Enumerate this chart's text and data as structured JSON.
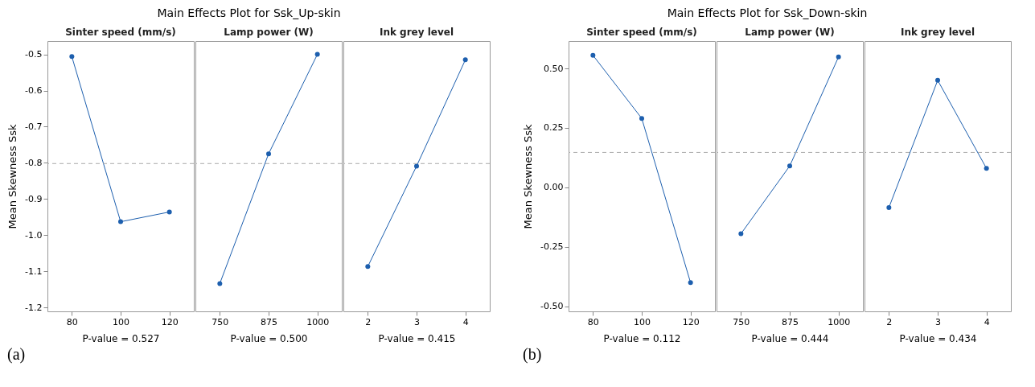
{
  "chart_data": [
    {
      "type": "line",
      "title": "Main Effects Plot for Ssk_Up-skin",
      "subtitle": "Sinter speed (mm/s)",
      "xlabel": "P-value = 0.527",
      "ylabel": "Mean Skewness Ssk",
      "annotations": [
        "(a)"
      ],
      "categories": [
        "80",
        "100",
        "120"
      ],
      "values": [
        -0.506,
        -0.963,
        -0.936
      ],
      "color": "#1d5fae",
      "marker": "circle",
      "ylim": [
        -1.211,
        -0.463
      ],
      "yticks": [
        -1.2,
        -1.1,
        {
          "value": -1.0,
          "label": "-1.0"
        },
        -0.9,
        -0.8,
        -0.7,
        -0.6,
        -0.5
      ],
      "ref_lines": [
        {
          "axis": "y",
          "value": -0.802,
          "color": "#aaaaaa",
          "line_style": "dashed"
        }
      ],
      "grid": false
    },
    {
      "type": "line",
      "subtitle": "Lamp power (W)",
      "xlabel": "P-value = 0.500",
      "categories": [
        "750",
        "875",
        "1000"
      ],
      "values": [
        -1.134,
        -0.775,
        -0.5
      ],
      "color": "#1d5fae",
      "marker": "circle",
      "ylim": [
        -1.211,
        -0.463
      ],
      "tick_labels": "x",
      "ref_lines": [
        {
          "axis": "y",
          "value": -0.802,
          "color": "#aaaaaa",
          "line_style": "dashed"
        }
      ],
      "grid": false
    },
    {
      "type": "line",
      "subtitle": "Ink grey level",
      "xlabel": "P-value = 0.415",
      "categories": [
        "2",
        "3",
        "4"
      ],
      "values": [
        -1.087,
        -0.809,
        -0.515
      ],
      "color": "#1d5fae",
      "marker": "circle",
      "ylim": [
        -1.211,
        -0.463
      ],
      "tick_labels": "x",
      "ref_lines": [
        {
          "axis": "y",
          "value": -0.802,
          "color": "#aaaaaa",
          "line_style": "dashed"
        }
      ],
      "grid": false
    },
    {
      "type": "line",
      "title": "Main Effects Plot for Ssk_Down-skin",
      "subtitle": "Sinter speed (mm/s)",
      "xlabel": "P-value = 0.112",
      "ylabel": "Mean Skewness Ssk",
      "annotations": [
        "(b)"
      ],
      "categories": [
        "80",
        "100",
        "120"
      ],
      "values": [
        0.555,
        0.29,
        -0.4
      ],
      "color": "#1d5fae",
      "marker": "circle",
      "ylim": [
        -0.521,
        0.615
      ],
      "yticks": [
        {
          "value": -0.5,
          "label": "-0.50"
        },
        -0.25,
        {
          "value": 0,
          "label": "0.00"
        },
        0.25,
        {
          "value": 0.5,
          "label": "0.50"
        }
      ],
      "ref_lines": [
        {
          "axis": "y",
          "value": 0.147,
          "color": "#aaaaaa",
          "line_style": "dashed"
        }
      ],
      "grid": false
    },
    {
      "type": "line",
      "subtitle": "Lamp power (W)",
      "xlabel": "P-value = 0.444",
      "categories": [
        "750",
        "875",
        "1000"
      ],
      "values": [
        -0.195,
        0.09,
        0.548
      ],
      "color": "#1d5fae",
      "marker": "circle",
      "ylim": [
        -0.521,
        0.615
      ],
      "tick_labels": "x",
      "ref_lines": [
        {
          "axis": "y",
          "value": 0.147,
          "color": "#aaaaaa",
          "line_style": "dashed"
        }
      ],
      "grid": false
    },
    {
      "type": "line",
      "subtitle": "Ink grey level",
      "xlabel": "P-value = 0.434",
      "categories": [
        "2",
        "3",
        "4"
      ],
      "values": [
        -0.085,
        0.45,
        0.08
      ],
      "color": "#1d5fae",
      "marker": "circle",
      "ylim": [
        -0.521,
        0.615
      ],
      "tick_labels": "x",
      "ref_lines": [
        {
          "axis": "y",
          "value": 0.147,
          "color": "#aaaaaa",
          "line_style": "dashed"
        }
      ],
      "grid": false
    }
  ]
}
